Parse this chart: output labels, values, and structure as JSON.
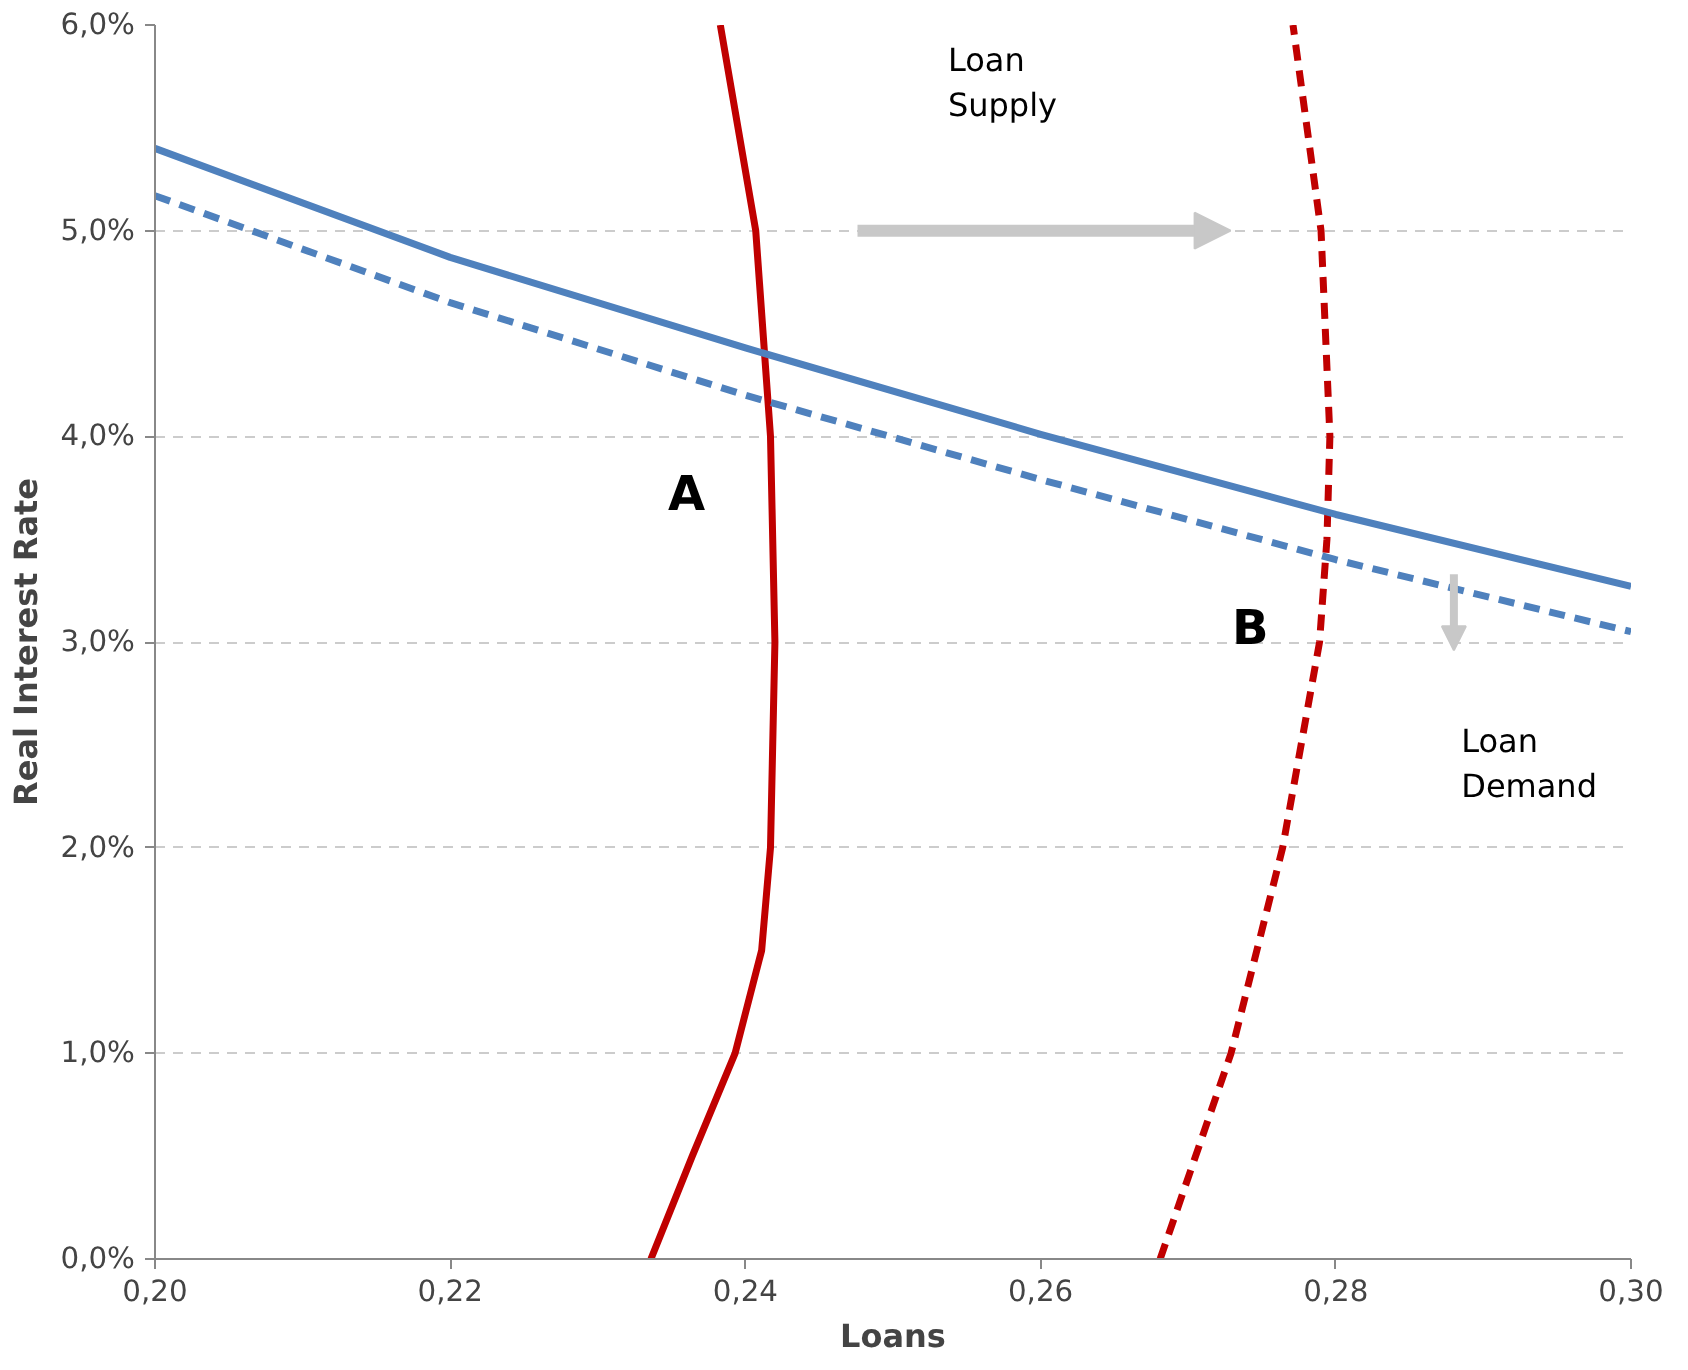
{
  "chart_data": {
    "type": "line",
    "xlabel": "Loans",
    "ylabel": "Real Interest Rate",
    "series": [
      {
        "x": [
          0.2336,
          0.2364,
          0.2393,
          0.2411,
          0.2417,
          0.242,
          0.2417,
          0.2407,
          0.2383
        ],
        "values": [
          0.0,
          0.5,
          1.0,
          1.5,
          2.0,
          3.0,
          4.0,
          5.0,
          6.0
        ],
        "color": "#c00000",
        "line_style": "solid"
      },
      {
        "x": [
          0.2681,
          0.2729,
          0.2764,
          0.2789,
          0.2794,
          0.2796,
          0.279,
          0.2771
        ],
        "values": [
          0.0,
          1.0,
          2.0,
          3.0,
          3.5,
          4.0,
          5.0,
          6.0
        ],
        "color": "#c00000",
        "line_style": "dashed"
      },
      {
        "x": [
          0.2,
          0.22,
          0.24,
          0.26,
          0.28,
          0.3
        ],
        "values": [
          5.4,
          4.87,
          4.43,
          4.01,
          3.62,
          3.27
        ],
        "color": "#4f81bd",
        "line_style": "solid"
      },
      {
        "x": [
          0.2,
          0.22,
          0.24,
          0.26,
          0.28,
          0.3
        ],
        "values": [
          5.17,
          4.65,
          4.2,
          3.79,
          3.4,
          3.05
        ],
        "color": "#4f81bd",
        "line_style": "dashed"
      }
    ],
    "annotations": [
      "Loan\nSupply",
      "Loan\nDemand",
      "A",
      "B"
    ],
    "xlim": [
      0.2,
      0.3
    ],
    "xticks": [
      {
        "value": 0.2,
        "label": "0,20"
      },
      {
        "value": 0.22,
        "label": "0,22"
      },
      {
        "value": 0.24,
        "label": "0,24"
      },
      {
        "value": 0.26,
        "label": "0,26"
      },
      {
        "value": 0.28,
        "label": "0,28"
      },
      {
        "value": 0.3,
        "label": "0,30"
      }
    ],
    "ylim": [
      0,
      6
    ],
    "yticks": [
      {
        "value": 0,
        "label": "0,0%"
      },
      {
        "value": 1,
        "label": "1,0%"
      },
      {
        "value": 2,
        "label": "2,0%"
      },
      {
        "value": 3,
        "label": "3,0%"
      },
      {
        "value": 4,
        "label": "4,0%"
      },
      {
        "value": 5,
        "label": "5,0%"
      },
      {
        "value": 6,
        "label": "6,0%"
      }
    ],
    "grid": "y",
    "marker": "none"
  }
}
